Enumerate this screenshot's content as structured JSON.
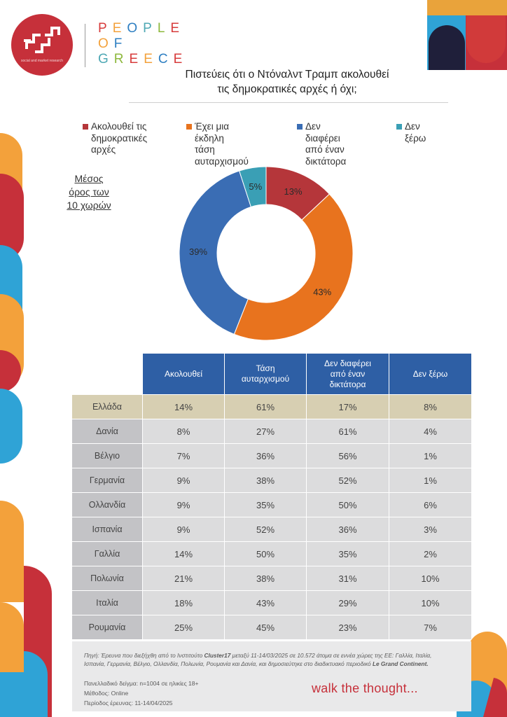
{
  "brand": {
    "logo_tagline": "social and market research",
    "name_lines": [
      "PEOPLE",
      "OF",
      "GREECE"
    ],
    "letter_colors": [
      "#d73c3c",
      "#f3a13b",
      "#2e7fc2",
      "#4ea8b4",
      "#8db83c",
      "#d73c3c",
      "#f3a13b",
      "#2e7fc2",
      "#4ea8b4",
      "#8db83c",
      "#d73c3c",
      "#f3a13b",
      "#2e7fc2"
    ]
  },
  "title_line1": "Πιστεύεις ότι ο Ντόναλντ Τραμπ ακολουθεί",
  "title_line2": "τις δημοκρατικές αρχές ή όχι;",
  "average_label_lines": [
    "Μέσος",
    "όρος των",
    "10 χωρών"
  ],
  "chart_data": {
    "type": "pie",
    "variant": "donut",
    "legend_position": "top",
    "slices": [
      {
        "label_lines": [
          "Ακολουθεί τις",
          "δημοκρατικές",
          "αρχές"
        ],
        "value": 13,
        "value_label": "13%",
        "color": "#b5363a"
      },
      {
        "label_lines": [
          "Έχει μια έκδηλη",
          "τάση",
          "αυταρχισμού"
        ],
        "value": 43,
        "value_label": "43%",
        "color": "#e8731e"
      },
      {
        "label_lines": [
          "Δεν διαφέρει",
          "από έναν",
          "δικτάτορα"
        ],
        "value": 39,
        "value_label": "39%",
        "color": "#3a6db4"
      },
      {
        "label_lines": [
          "Δεν ξέρω"
        ],
        "value": 5,
        "value_label": "5%",
        "color": "#3a9fb5"
      }
    ]
  },
  "table": {
    "headers": [
      {
        "lines": [
          "Ακολουθεί"
        ]
      },
      {
        "lines": [
          "Τάση",
          "αυταρχισμού"
        ]
      },
      {
        "lines": [
          "Δεν διαφέρει",
          "από έναν",
          "δικτάτορα"
        ]
      },
      {
        "lines": [
          "Δεν ξέρω"
        ]
      }
    ],
    "rows": [
      {
        "country": "Ελλάδα",
        "values": [
          "14%",
          "61%",
          "17%",
          "8%"
        ],
        "highlight": true
      },
      {
        "country": "Δανία",
        "values": [
          "8%",
          "27%",
          "61%",
          "4%"
        ]
      },
      {
        "country": "Βέλγιο",
        "values": [
          "7%",
          "36%",
          "56%",
          "1%"
        ]
      },
      {
        "country": "Γερμανία",
        "values": [
          "9%",
          "38%",
          "52%",
          "1%"
        ]
      },
      {
        "country": "Ολλανδία",
        "values": [
          "9%",
          "35%",
          "50%",
          "6%"
        ]
      },
      {
        "country": "Ισπανία",
        "values": [
          "9%",
          "52%",
          "36%",
          "3%"
        ]
      },
      {
        "country": "Γαλλία",
        "values": [
          "14%",
          "50%",
          "35%",
          "2%"
        ]
      },
      {
        "country": "Πολωνία",
        "values": [
          "21%",
          "38%",
          "31%",
          "10%"
        ]
      },
      {
        "country": "Ιταλία",
        "values": [
          "18%",
          "43%",
          "29%",
          "10%"
        ]
      },
      {
        "country": "Ρουμανία",
        "values": [
          "25%",
          "45%",
          "23%",
          "7%"
        ]
      }
    ]
  },
  "footer": {
    "source_prefix": "Πηγή: Έρευνα που διεξήχθη από το Ινστιτούτο ",
    "source_institute": "Cluster17",
    "source_middle": " μεταξύ 11-14/03/2025 σε 10.572 άτομα σε εννέα χώρες της ΕΕ: Γαλλία, Ιταλία, Ισπανία, Γερμανία, Βέλγιο, Ολλανδία, Πολωνία, Ρουμανία και Δανία, και δημοσιεύτηκε στο διαδικτυακό περιοδικό ",
    "source_magazine": "Le Grand Continent.",
    "sample": "Πανελλαδικό δείγμα: n=1004 σε ηλικίες 18+",
    "method": "Μέθοδος: Online",
    "period": "Περίοδος έρευνας: 11-14/04/2025"
  },
  "slogan": "walk the thought...",
  "colors": {
    "brand_red": "#c6303a",
    "header_blue": "#2e5fa5",
    "highlight_row": "#d7cfb2",
    "country_col": "#c3c3c6",
    "value_col": "#dcdcdd"
  }
}
